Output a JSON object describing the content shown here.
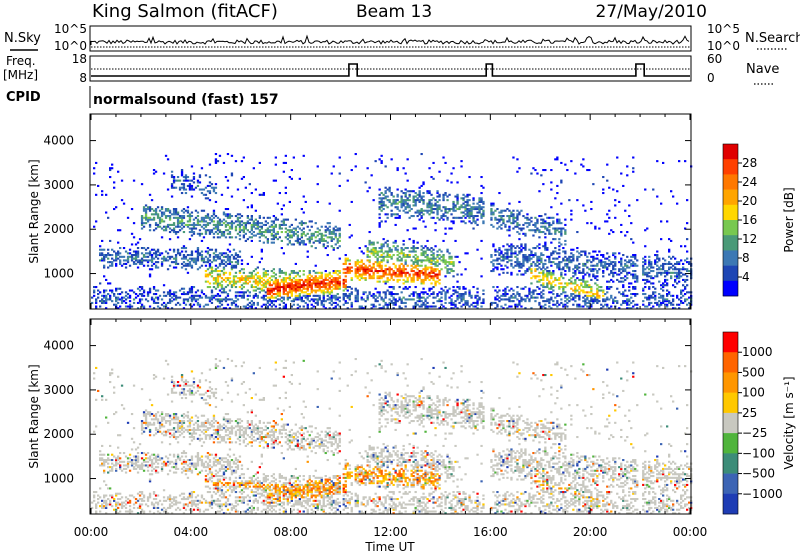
{
  "header": {
    "station": "King Salmon (fitACF)",
    "beam": "Beam 13",
    "date": "27/May/2010"
  },
  "top_panel": {
    "left_label": "N.Sky",
    "right_label": "N.Search",
    "tick_top": "10^5",
    "tick_bottom": "10^0"
  },
  "freq_panel": {
    "label_line1": "Freq.",
    "label_line2": "[MHz]",
    "tick_top": "18",
    "tick_bottom": "8",
    "right_label": "Nave",
    "right_tick_top": "60",
    "right_tick_bottom": "0",
    "steps": [
      {
        "start": "10:20",
        "end": "10:40"
      },
      {
        "start": "15:50",
        "end": "16:05"
      },
      {
        "start": "21:50",
        "end": "22:10"
      }
    ]
  },
  "cpid": {
    "label": "CPID",
    "text": "normalsound (fast) 157"
  },
  "chart_data": [
    {
      "type": "heatmap",
      "name": "power",
      "ylabel": "Slant Range [km]",
      "ylim": [
        200,
        4600
      ],
      "yticks": [
        "1000",
        "2000",
        "3000",
        "4000"
      ],
      "colorbar": {
        "label": "Power [dB]",
        "ticks": [
          "4",
          "8",
          "12",
          "16",
          "20",
          "24",
          "28"
        ],
        "colors": [
          "#0000ff",
          "#1e46b4",
          "#3c78b4",
          "#4a9a78",
          "#78c850",
          "#ffd700",
          "#ffa500",
          "#ff7800",
          "#ff4000",
          "#e00000"
        ]
      }
    },
    {
      "type": "heatmap",
      "name": "velocity",
      "ylabel": "Slant Range [km]",
      "ylim": [
        200,
        4600
      ],
      "yticks": [
        "1000",
        "2000",
        "3000",
        "4000"
      ],
      "xlabel": "Time UT",
      "xticks": [
        "00:00",
        "04:00",
        "08:00",
        "12:00",
        "16:00",
        "20:00",
        "00:00"
      ],
      "colorbar": {
        "label": "Velocity [m s⁻¹]",
        "ticks": [
          "1000",
          "500",
          "100",
          "25",
          "−25",
          "−100",
          "−500",
          "−1000"
        ],
        "colors": [
          "#1e3cb4",
          "#3c64b4",
          "#3c8c78",
          "#50b43c",
          "#c8c8c0",
          "#ffc800",
          "#ff9600",
          "#ff6400",
          "#ff0000"
        ]
      }
    }
  ],
  "colors": {
    "ground_scatter": "#c8c8c0"
  }
}
